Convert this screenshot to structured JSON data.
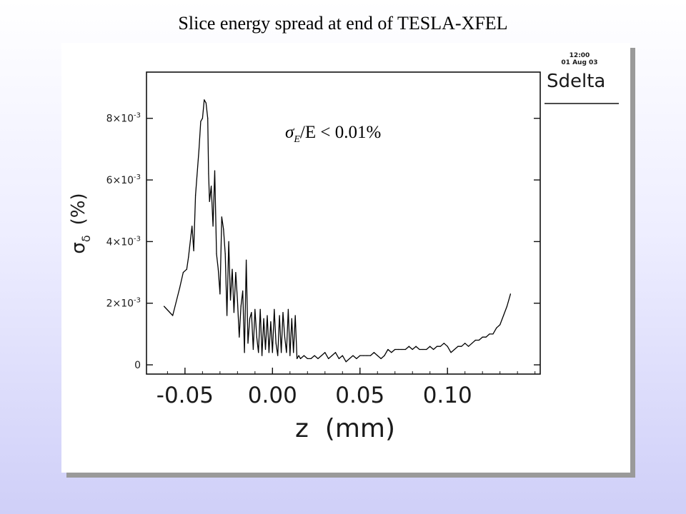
{
  "slide": {
    "title": "Slice energy spread at end of TESLA-XFEL"
  },
  "plot_stamp": {
    "time": "12:00",
    "date": "01 Aug 03",
    "label": "Sdelta"
  },
  "annotation": {
    "sigma": "σ",
    "subscript": "E",
    "rest": "/E < 0.01%"
  },
  "chart_data": {
    "type": "line",
    "title": "Slice energy spread at end of TESLA-XFEL",
    "xlabel": "z  (mm)",
    "ylabel_symbol": "σ",
    "ylabel_sub": "δ",
    "ylabel_unit": "(%)",
    "xlim": [
      -0.072,
      0.153
    ],
    "ylim": [
      -0.0003,
      0.0095
    ],
    "x_ticks": [
      -0.05,
      0.0,
      0.05,
      0.1
    ],
    "x_tick_labels": [
      "-0.05",
      "0.00",
      "0.05",
      "0.10"
    ],
    "y_ticks": [
      0,
      0.002,
      0.004,
      0.006,
      0.008
    ],
    "y_tick_labels": [
      {
        "mant": "0",
        "pow": ""
      },
      {
        "mant": "2×10",
        "pow": "-3"
      },
      {
        "mant": "4×10",
        "pow": "-3"
      },
      {
        "mant": "6×10",
        "pow": "-3"
      },
      {
        "mant": "8×10",
        "pow": "-3"
      }
    ],
    "grid": false,
    "series": [
      {
        "color": "#000000",
        "x": [
          -0.062,
          -0.057,
          -0.053,
          -0.051,
          -0.049,
          -0.048,
          -0.046,
          -0.045,
          -0.044,
          -0.042,
          -0.041,
          -0.04,
          -0.039,
          -0.038,
          -0.037,
          -0.0365,
          -0.036,
          -0.035,
          -0.034,
          -0.033,
          -0.032,
          -0.031,
          -0.03,
          -0.029,
          -0.028,
          -0.027,
          -0.026,
          -0.025,
          -0.024,
          -0.023,
          -0.022,
          -0.021,
          -0.02,
          -0.019,
          -0.018,
          -0.017,
          -0.016,
          -0.015,
          -0.014,
          -0.013,
          -0.012,
          -0.011,
          -0.01,
          -0.009,
          -0.008,
          -0.007,
          -0.006,
          -0.005,
          -0.004,
          -0.003,
          -0.002,
          -0.001,
          0.0,
          0.001,
          0.002,
          0.003,
          0.004,
          0.005,
          0.006,
          0.007,
          0.008,
          0.009,
          0.01,
          0.011,
          0.012,
          0.013,
          0.014,
          0.015,
          0.016,
          0.018,
          0.02,
          0.022,
          0.024,
          0.026,
          0.028,
          0.03,
          0.032,
          0.034,
          0.036,
          0.038,
          0.04,
          0.042,
          0.044,
          0.046,
          0.048,
          0.05,
          0.052,
          0.054,
          0.056,
          0.058,
          0.06,
          0.062,
          0.064,
          0.066,
          0.068,
          0.07,
          0.072,
          0.074,
          0.076,
          0.078,
          0.08,
          0.082,
          0.084,
          0.086,
          0.088,
          0.09,
          0.092,
          0.094,
          0.096,
          0.098,
          0.1,
          0.102,
          0.104,
          0.106,
          0.108,
          0.11,
          0.112,
          0.114,
          0.116,
          0.118,
          0.12,
          0.122,
          0.124,
          0.126,
          0.128,
          0.13,
          0.132,
          0.134,
          0.136
        ],
        "y": [
          0.0019,
          0.0016,
          0.0025,
          0.003,
          0.0031,
          0.0035,
          0.0045,
          0.0037,
          0.0055,
          0.007,
          0.0079,
          0.008,
          0.0086,
          0.0085,
          0.008,
          0.0062,
          0.0053,
          0.0058,
          0.0045,
          0.0063,
          0.0036,
          0.0031,
          0.0023,
          0.0048,
          0.0044,
          0.0036,
          0.0016,
          0.004,
          0.0021,
          0.0031,
          0.0017,
          0.003,
          0.0021,
          0.0009,
          0.0019,
          0.0024,
          0.0004,
          0.0034,
          0.0007,
          0.0015,
          0.0017,
          0.0005,
          0.0018,
          0.0009,
          0.0004,
          0.0018,
          0.0003,
          0.0015,
          0.0005,
          0.0016,
          0.0004,
          0.0014,
          0.0004,
          0.0018,
          0.0007,
          0.0003,
          0.0016,
          0.0004,
          0.0017,
          0.0009,
          0.0004,
          0.0018,
          0.0003,
          0.0015,
          0.0004,
          0.0016,
          0.0002,
          0.0003,
          0.0002,
          0.0003,
          0.0002,
          0.0002,
          0.0003,
          0.0002,
          0.0003,
          0.0004,
          0.0002,
          0.0003,
          0.0004,
          0.0002,
          0.0003,
          0.0001,
          0.0002,
          0.0003,
          0.0002,
          0.0003,
          0.0003,
          0.0003,
          0.0003,
          0.0004,
          0.0003,
          0.0002,
          0.0003,
          0.0005,
          0.0004,
          0.0005,
          0.0005,
          0.0005,
          0.0005,
          0.0006,
          0.0005,
          0.0006,
          0.0005,
          0.0005,
          0.0005,
          0.0006,
          0.0005,
          0.0006,
          0.0006,
          0.0007,
          0.0006,
          0.0004,
          0.0005,
          0.0006,
          0.0006,
          0.0007,
          0.0006,
          0.0007,
          0.0008,
          0.0008,
          0.0009,
          0.0009,
          0.001,
          0.001,
          0.0012,
          0.0013,
          0.0016,
          0.0019,
          0.0023
        ]
      }
    ]
  }
}
